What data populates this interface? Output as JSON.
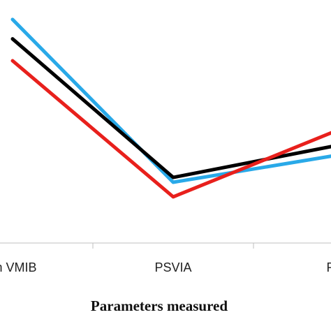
{
  "chart_data": {
    "type": "line",
    "xlabel": "Parameters measured",
    "ylabel": "",
    "title": "",
    "categories": [
      "an VMIB",
      "PSVIA",
      "RS"
    ],
    "ylim": [
      0,
      100
    ],
    "grid": false,
    "series": [
      {
        "values": [
          92,
          25,
          36
        ],
        "color": "#29a9e8"
      },
      {
        "values": [
          84,
          27,
          40
        ],
        "color": "#000000"
      },
      {
        "values": [
          75,
          19,
          46
        ],
        "color": "#e8201c"
      }
    ]
  }
}
